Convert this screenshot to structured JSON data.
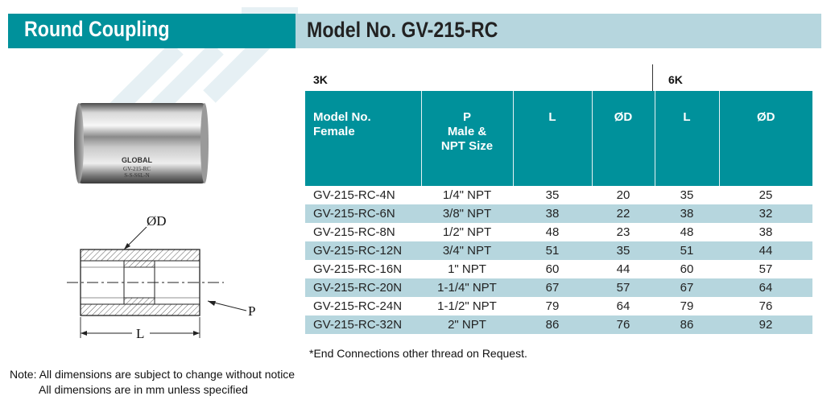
{
  "header": {
    "title": "Round Coupling",
    "model": "Model No. GV-215-RC"
  },
  "photo": {
    "brand": "GLOBAL",
    "line1": "GV-215-RC",
    "line2": "S-S-S6L-N"
  },
  "drawing": {
    "od_label": "ØD",
    "p_label": "P",
    "l_label": "L"
  },
  "table": {
    "group_3k": "3K",
    "group_6k": "6K",
    "headers": {
      "model": [
        "Model No.",
        "Female"
      ],
      "p": [
        "P",
        "Male &",
        "NPT Size"
      ],
      "l3": "L",
      "d3": "ØD",
      "l6": "L",
      "d6": "ØD"
    },
    "rows": [
      [
        "GV-215-RC-4N",
        "1/4\" NPT",
        "35",
        "20",
        "35",
        "25"
      ],
      [
        "GV-215-RC-6N",
        "3/8\" NPT",
        "38",
        "22",
        "38",
        "32"
      ],
      [
        "GV-215-RC-8N",
        "1/2\" NPT",
        "48",
        "23",
        "48",
        "38"
      ],
      [
        "GV-215-RC-12N",
        "3/4\" NPT",
        "51",
        "35",
        "51",
        "44"
      ],
      [
        "GV-215-RC-16N",
        "1\" NPT",
        "60",
        "44",
        "60",
        "57"
      ],
      [
        "GV-215-RC-20N",
        "1-1/4\" NPT",
        "67",
        "57",
        "67",
        "64"
      ],
      [
        "GV-215-RC-24N",
        "1-1/2\" NPT",
        "79",
        "64",
        "79",
        "76"
      ],
      [
        "GV-215-RC-32N",
        "2\" NPT",
        "86",
        "76",
        "86",
        "92"
      ]
    ]
  },
  "footnote": "*End Connections other thread on Request.",
  "note": {
    "line1": "Note: All dimensions are subject to change without notice",
    "line2": "All dimensions are in mm unless specified"
  },
  "colors": {
    "teal": "#00919b",
    "light_teal": "#b6d6de"
  }
}
